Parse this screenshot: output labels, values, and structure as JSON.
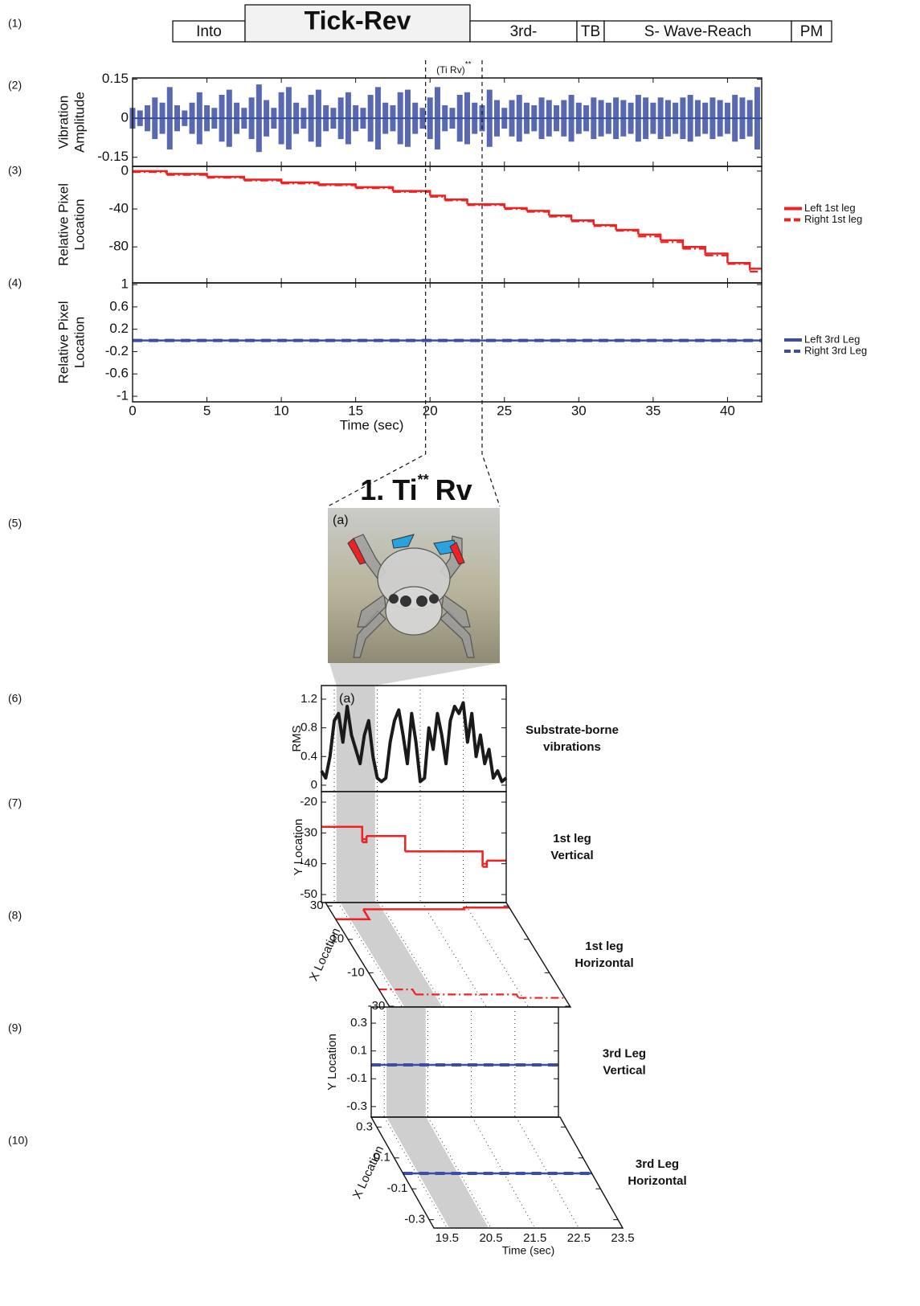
{
  "panel_labels": [
    "(1)",
    "(2)",
    "(3)",
    "(4)",
    "(5)",
    "(6)",
    "(7)",
    "(8)",
    "(9)",
    "(10)"
  ],
  "behavior_bar": [
    "Into",
    "Tick-Rev",
    "3rd-",
    "TB",
    "S- Wave-Reach",
    "PM"
  ],
  "zoom_title": {
    "text": "1. Ti",
    "sup": "**",
    "rest": "Rv"
  },
  "photo_label": "(a)",
  "chart_data": [
    {
      "type": "waveform",
      "ylabel": [
        "Vibration",
        "Amplitude"
      ],
      "color": "#3b4ea3",
      "xlim": [
        0,
        42.3
      ],
      "xticks": [
        0,
        5,
        10,
        15,
        20,
        25,
        30,
        35,
        40
      ],
      "ylim": [
        -0.185,
        0.155
      ],
      "yticks": [
        0.15,
        0,
        -0.15
      ],
      "zoom_lines": [
        19.7,
        23.5
      ],
      "annotation": {
        "text": "(Ti Rv)",
        "sup": "**"
      },
      "x": [
        0,
        0.5,
        1,
        1.5,
        2,
        2.5,
        3,
        3.5,
        4,
        4.5,
        5,
        5.5,
        6,
        6.5,
        7,
        7.5,
        8,
        8.5,
        9,
        9.5,
        10,
        10.5,
        11,
        11.5,
        12,
        12.5,
        13,
        13.5,
        14,
        14.5,
        15,
        15.5,
        16,
        16.5,
        17,
        17.5,
        18,
        18.5,
        19,
        19.5,
        20,
        20.5,
        21,
        21.5,
        22,
        22.5,
        23,
        23.5,
        24,
        24.5,
        25,
        25.5,
        26,
        26.5,
        27,
        27.5,
        28,
        28.5,
        29,
        29.5,
        30,
        30.5,
        31,
        31.5,
        32,
        32.5,
        33,
        33.5,
        34,
        34.5,
        35,
        35.5,
        36,
        36.5,
        37,
        37.5,
        38,
        38.5,
        39,
        39.5,
        40,
        40.5,
        41,
        41.5,
        42
      ],
      "values": [
        0.04,
        0.03,
        0.05,
        0.08,
        0.06,
        0.12,
        0.05,
        0.03,
        0.06,
        0.1,
        0.05,
        0.04,
        0.09,
        0.11,
        0.06,
        0.04,
        0.08,
        0.13,
        0.07,
        0.04,
        0.1,
        0.12,
        0.06,
        0.04,
        0.09,
        0.11,
        0.05,
        0.04,
        0.08,
        0.1,
        0.05,
        0.04,
        0.09,
        0.12,
        0.06,
        0.05,
        0.1,
        0.11,
        0.06,
        0.04,
        0.08,
        0.12,
        0.05,
        0.04,
        0.09,
        0.1,
        0.06,
        0.05,
        0.11,
        0.07,
        0.04,
        0.07,
        0.09,
        0.06,
        0.05,
        0.08,
        0.07,
        0.05,
        0.07,
        0.09,
        0.06,
        0.05,
        0.08,
        0.07,
        0.06,
        0.08,
        0.07,
        0.06,
        0.09,
        0.08,
        0.06,
        0.08,
        0.07,
        0.06,
        0.08,
        0.09,
        0.07,
        0.06,
        0.08,
        0.07,
        0.06,
        0.09,
        0.08,
        0.07,
        0.12
      ]
    },
    {
      "type": "step",
      "ylabel": [
        "Relative Pixel",
        "Location"
      ],
      "legend": "right",
      "xlim": [
        0,
        42.3
      ],
      "xticks": [
        0,
        5,
        10,
        15,
        20,
        25,
        30,
        35,
        40
      ],
      "ylim": [
        -118,
        5
      ],
      "yticks": [
        0,
        -40,
        -80
      ],
      "x": [
        0,
        2.3,
        5,
        7.5,
        10,
        12.5,
        15,
        17.5,
        20,
        21,
        22.5,
        25,
        26.5,
        28,
        29.5,
        31,
        32.5,
        34,
        35.5,
        37,
        38.5,
        40,
        41.5
      ],
      "series": [
        {
          "name": "Left 1st leg",
          "color": "#ee2222",
          "style": "solid",
          "values": [
            0,
            -3,
            -6,
            -9,
            -12,
            -14,
            -17,
            -21,
            -26,
            -30,
            -35,
            -39,
            -42,
            -47,
            -52,
            -57,
            -62,
            -67,
            -73,
            -80,
            -87,
            -97,
            -103
          ]
        },
        {
          "name": "Right 1st leg",
          "color": "#ee2222",
          "style": "dashdot",
          "values": [
            -1,
            -4,
            -7,
            -10,
            -13,
            -15,
            -18,
            -22,
            -27,
            -31,
            -36,
            -40,
            -43,
            -48,
            -53,
            -58,
            -63,
            -69,
            -75,
            -82,
            -89,
            -98,
            -106
          ]
        }
      ]
    },
    {
      "type": "step",
      "ylabel": [
        "Relative Pixel",
        "Location"
      ],
      "legend": "right",
      "xlabel": "Time (sec)",
      "xlim": [
        0,
        42.3
      ],
      "xticks": [
        0,
        5,
        10,
        15,
        20,
        25,
        30,
        35,
        40
      ],
      "ylim": [
        -1.1,
        1.03
      ],
      "yticks": [
        1,
        0.6,
        0.2,
        -0.2,
        -0.6,
        -1
      ],
      "x": [
        0,
        42.3
      ],
      "series": [
        {
          "name": "Left 3rd Leg",
          "color": "#3b4ea3",
          "style": "solid",
          "values": [
            0,
            0
          ]
        },
        {
          "name": "Right 3rd Leg",
          "color": "#3b4ea3",
          "style": "dashed",
          "values": [
            0,
            0
          ]
        }
      ]
    },
    {
      "type": "line",
      "ylabel": [
        "RMS"
      ],
      "side_label": [
        "Substrate-borne",
        "vibrations"
      ],
      "annotation": "(a)",
      "xlim": [
        19.2,
        23.5
      ],
      "xticks": [
        19.5,
        20.5,
        21.5,
        22.5,
        23.5
      ],
      "highlight": [
        19.55,
        20.45
      ],
      "ylim": [
        -0.09,
        1.39
      ],
      "yticks": [
        1.2,
        0.8,
        0.4,
        0
      ],
      "x": [
        19.2,
        19.3,
        19.4,
        19.5,
        19.6,
        19.7,
        19.8,
        19.9,
        20,
        20.1,
        20.2,
        20.3,
        20.4,
        20.5,
        20.6,
        20.7,
        20.8,
        20.9,
        21,
        21.1,
        21.2,
        21.3,
        21.4,
        21.5,
        21.6,
        21.7,
        21.8,
        21.9,
        22,
        22.1,
        22.2,
        22.3,
        22.4,
        22.5,
        22.6,
        22.7,
        22.8,
        22.9,
        23,
        23.1,
        23.2,
        23.3,
        23.4,
        23.5
      ],
      "series": [
        {
          "color": "#1a1a1a",
          "style": "solid",
          "values": [
            0.2,
            0.1,
            0.4,
            0.9,
            1.0,
            0.6,
            1.1,
            0.7,
            0.5,
            0.3,
            0.7,
            0.9,
            0.4,
            0.1,
            0.05,
            0.1,
            0.6,
            0.9,
            1.05,
            0.7,
            0.3,
            1.0,
            0.6,
            0.05,
            0.1,
            0.8,
            0.5,
            1.0,
            0.7,
            0.3,
            0.9,
            1.1,
            1.0,
            1.15,
            0.6,
            1.0,
            0.4,
            0.7,
            0.3,
            0.5,
            0.1,
            0.2,
            0.05,
            0.1
          ]
        }
      ]
    },
    {
      "type": "step",
      "ylabel": [
        "Y Location"
      ],
      "side_label": [
        "1st leg",
        "Vertical"
      ],
      "xlim": [
        19.2,
        23.5
      ],
      "xticks": [
        19.5,
        20.5,
        21.5,
        22.5,
        23.5
      ],
      "ylim": [
        -52.6,
        -16.6
      ],
      "yticks": [
        -20,
        -30,
        -40,
        -50
      ],
      "x": [
        19.2,
        20.15,
        20.25,
        21.15,
        22.95,
        23.05
      ],
      "series": [
        {
          "color": "#ee2222",
          "style": "solid",
          "values": [
            -28,
            -33,
            -31,
            -36,
            -41,
            -39
          ]
        },
        {
          "color": "#ee2222",
          "style": "dashdot",
          "values": [
            -28,
            -32,
            -31,
            -36,
            -40,
            -39
          ]
        }
      ]
    },
    {
      "type": "step",
      "ylabel": [
        "X Location"
      ],
      "side_label": [
        "1st leg",
        "Horizontal"
      ],
      "skewed": true,
      "xlim": [
        19.2,
        23.5
      ],
      "xticks": [
        19.5,
        20.5,
        21.5,
        22.5,
        23.5
      ],
      "ylim": [
        -30.5,
        32
      ],
      "yticks": [
        30,
        10,
        -10,
        -30
      ],
      "x": [
        19.2,
        20.0,
        22.4
      ],
      "series": [
        {
          "color": "#ee2222",
          "style": "solid",
          "values": [
            22,
            28,
            29
          ]
        },
        {
          "color": "#ee2222",
          "style": "dashdot",
          "values": [
            -20,
            -23,
            -25
          ]
        }
      ]
    },
    {
      "type": "step",
      "ylabel": [
        "Y Location"
      ],
      "side_label": [
        "3rd Leg",
        "Vertical"
      ],
      "xlim": [
        19.2,
        23.5
      ],
      "xticks": [
        19.5,
        20.5,
        21.5,
        22.5,
        23.5
      ],
      "ylim": [
        -0.376,
        0.416
      ],
      "yticks": [
        0.3,
        0.1,
        -0.1,
        -0.3
      ],
      "x": [
        19.2,
        23.5
      ],
      "series": [
        {
          "color": "#3b4ea3",
          "style": "solid",
          "values": [
            0,
            0
          ]
        },
        {
          "color": "#3b4ea3",
          "style": "dashed",
          "values": [
            0,
            0
          ]
        }
      ]
    },
    {
      "type": "step",
      "ylabel": [
        "X Location"
      ],
      "side_label": [
        "3rd Leg",
        "Horizontal"
      ],
      "skewed": true,
      "xlabel": "Time (sec)",
      "xlim": [
        19.2,
        23.5
      ],
      "xticks": [
        19.5,
        20.5,
        21.5,
        22.5,
        23.5
      ],
      "ylim": [
        -0.354,
        0.364
      ],
      "yticks": [
        0.3,
        0.1,
        -0.1,
        -0.3
      ],
      "x": [
        19.2,
        23.5
      ],
      "series": [
        {
          "color": "#3b4ea3",
          "style": "solid",
          "values": [
            0,
            0
          ]
        },
        {
          "color": "#3b4ea3",
          "style": "dashed",
          "values": [
            0,
            0
          ]
        }
      ]
    }
  ]
}
